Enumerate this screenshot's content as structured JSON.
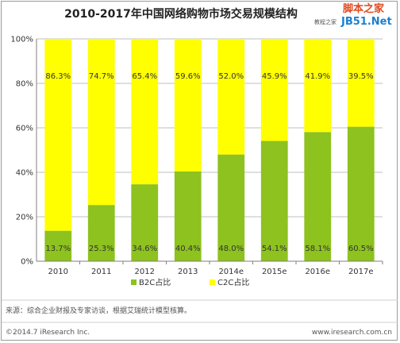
{
  "title": "2010-2017年中国网络购物市场交易规模结构",
  "watermark": {
    "top": "脚本之家",
    "bottom": "JB51.Net",
    "small": "教程之家"
  },
  "colors": {
    "b2c": "#8dc21f",
    "c2c": "#ffff00",
    "grid": "#bfbfbf",
    "axis": "#7f7f7f"
  },
  "chart_data": {
    "type": "bar",
    "stacked": true,
    "percent": true,
    "categories": [
      "2010",
      "2011",
      "2012",
      "2013",
      "2014e",
      "2015e",
      "2016e",
      "2017e"
    ],
    "series": [
      {
        "name": "B2C占比",
        "values": [
          13.7,
          25.3,
          34.6,
          40.4,
          48.0,
          54.1,
          58.1,
          60.5
        ],
        "labels": [
          "13.7%",
          "25.3%",
          "34.6%",
          "40.4%",
          "48.0%",
          "54.1%",
          "58.1%",
          "60.5%"
        ]
      },
      {
        "name": "C2C占比",
        "values": [
          86.3,
          74.7,
          65.4,
          59.6,
          52.0,
          45.9,
          41.9,
          39.5
        ],
        "labels": [
          "86.3%",
          "74.7%",
          "65.4%",
          "59.6%",
          "52.0%",
          "45.9%",
          "41.9%",
          "39.5%"
        ]
      }
    ],
    "ylim": [
      0,
      100
    ],
    "yticks": [
      "0%",
      "20%",
      "40%",
      "60%",
      "80%",
      "100%"
    ],
    "grid": true,
    "legend_position": "bottom"
  },
  "footer": {
    "source": "来源：综合企业财报及专家访谈，根据艾瑞统计模型核算。",
    "copyright": "©2014.7 iResearch Inc.",
    "website": "www.iresearch.com.cn"
  }
}
